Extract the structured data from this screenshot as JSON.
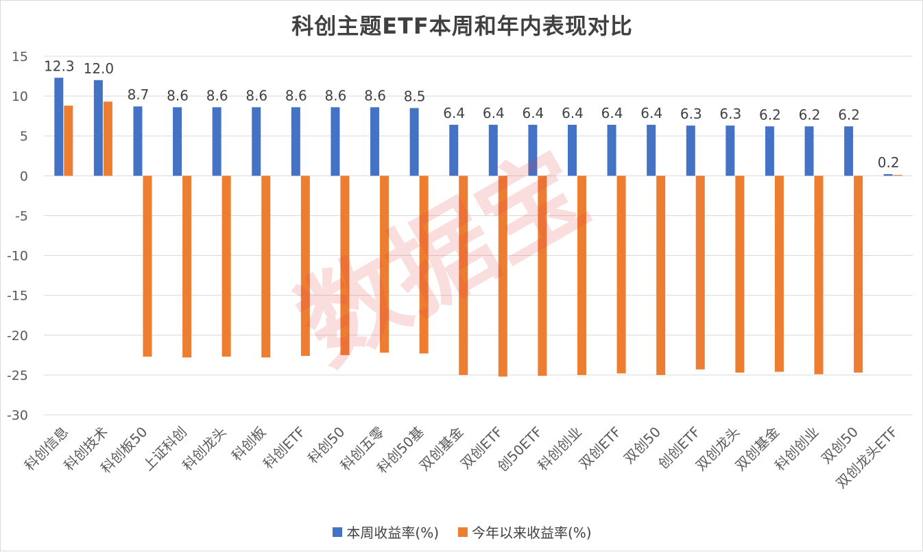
{
  "title": "科创主题ETF本周和年内表现对比",
  "watermark": "数据宝",
  "chart_data": {
    "type": "bar",
    "title": "科创主题ETF本周和年内表现对比",
    "xlabel": "",
    "ylabel": "",
    "ylim": [
      -30,
      15
    ],
    "yticks": [
      15,
      10,
      5,
      0,
      -5,
      -10,
      -15,
      -20,
      -25,
      -30
    ],
    "grid": true,
    "legend_position": "bottom",
    "categories": [
      "科创信息",
      "科创技术",
      "科创板50",
      "上证科创",
      "科创龙头",
      "科创板",
      "科创ETF",
      "科创50",
      "科创五零",
      "科创50基",
      "双创基金",
      "双创ETF",
      "创50ETF",
      "科创创业",
      "双创ETF",
      "双创50",
      "创创ETF",
      "双创龙头",
      "双创基金",
      "科创创业",
      "双创50",
      "双创龙头ETF"
    ],
    "series": [
      {
        "name": "本周收益率(%)",
        "color": "#4472C4",
        "values": [
          12.3,
          12.0,
          8.7,
          8.6,
          8.6,
          8.6,
          8.6,
          8.6,
          8.6,
          8.5,
          6.4,
          6.4,
          6.4,
          6.4,
          6.4,
          6.4,
          6.3,
          6.3,
          6.2,
          6.2,
          6.2,
          0.2
        ],
        "labels": [
          "12.3",
          "12.0",
          "8.7",
          "8.6",
          "8.6",
          "8.6",
          "8.6",
          "8.6",
          "8.6",
          "8.5",
          "6.4",
          "6.4",
          "6.4",
          "6.4",
          "6.4",
          "6.4",
          "6.3",
          "6.3",
          "6.2",
          "6.2",
          "6.2",
          "0.2"
        ]
      },
      {
        "name": "今年以来收益率(%)",
        "color": "#ED7D31",
        "values": [
          8.8,
          9.3,
          -22.7,
          -22.8,
          -22.7,
          -22.8,
          -22.6,
          -22.5,
          -22.2,
          -22.3,
          -25.0,
          -25.2,
          -25.1,
          -25.0,
          -24.8,
          -25.0,
          -24.3,
          -24.7,
          -24.6,
          -24.9,
          -24.7,
          0.1
        ]
      }
    ]
  }
}
